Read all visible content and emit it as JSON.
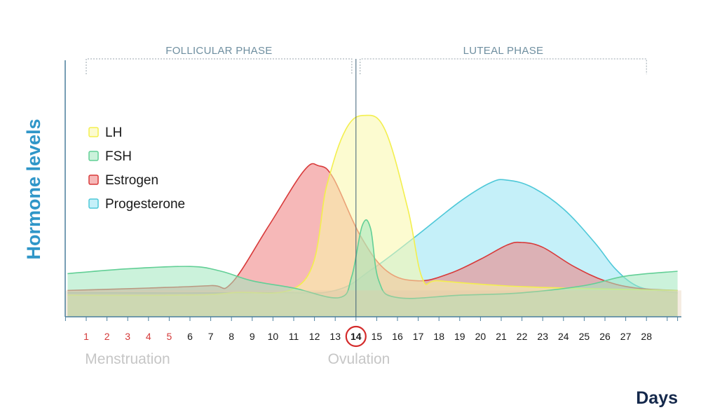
{
  "chart_data": {
    "type": "area",
    "xlabel": "Days",
    "ylabel": "Hormone levels",
    "x_ticks": [
      "1",
      "2",
      "3",
      "4",
      "5",
      "6",
      "7",
      "8",
      "9",
      "10",
      "11",
      "12",
      "13",
      "14",
      "15",
      "16",
      "17",
      "18",
      "19",
      "20",
      "21",
      "22",
      "23",
      "24",
      "25",
      "26",
      "27",
      "28"
    ],
    "menstruation_days": [
      "1",
      "2",
      "3",
      "4",
      "5"
    ],
    "highlighted_day": "14",
    "phases": [
      {
        "label": "FOLLICULAR PHASE",
        "start_day": 1,
        "end_day": 13.8
      },
      {
        "label": "LUTEAL PHASE",
        "start_day": 14.2,
        "end_day": 28
      }
    ],
    "ovulation_day": 14,
    "annotations": {
      "menstruation": "Menstruation",
      "ovulation": "Ovulation"
    },
    "xlim": [
      0.1,
      29.5
    ],
    "ylim": [
      0,
      1
    ],
    "grid": false,
    "legend_position": "left",
    "series": [
      {
        "name": "LH",
        "color": "#f3ef4e",
        "fill": "rgba(250,248,170,0.55)",
        "points": [
          [
            0.1,
            0.09
          ],
          [
            5,
            0.09
          ],
          [
            8,
            0.1
          ],
          [
            11.5,
            0.15
          ],
          [
            12.6,
            0.55
          ],
          [
            13.5,
            0.78
          ],
          [
            14.4,
            0.84
          ],
          [
            15.4,
            0.78
          ],
          [
            16.5,
            0.45
          ],
          [
            17.2,
            0.16
          ],
          [
            18,
            0.15
          ],
          [
            21,
            0.13
          ],
          [
            24,
            0.12
          ],
          [
            29.5,
            0.11
          ]
        ]
      },
      {
        "name": "FSH",
        "color": "#62cf96",
        "fill": "rgba(160,232,190,0.55)",
        "points": [
          [
            0.1,
            0.18
          ],
          [
            3,
            0.2
          ],
          [
            6,
            0.21
          ],
          [
            7.5,
            0.19
          ],
          [
            9,
            0.15
          ],
          [
            11,
            0.12
          ],
          [
            13.2,
            0.08
          ],
          [
            13.8,
            0.17
          ],
          [
            14.3,
            0.38
          ],
          [
            14.7,
            0.37
          ],
          [
            15.1,
            0.15
          ],
          [
            16,
            0.08
          ],
          [
            19,
            0.09
          ],
          [
            22,
            0.1
          ],
          [
            25,
            0.13
          ],
          [
            27,
            0.17
          ],
          [
            29.5,
            0.19
          ]
        ]
      },
      {
        "name": "Estrogen",
        "color": "#d83a3a",
        "fill": "rgba(238,126,126,0.55)",
        "points": [
          [
            0.1,
            0.11
          ],
          [
            4,
            0.12
          ],
          [
            7,
            0.13
          ],
          [
            8,
            0.14
          ],
          [
            9.8,
            0.38
          ],
          [
            11.5,
            0.61
          ],
          [
            12.2,
            0.63
          ],
          [
            12.9,
            0.58
          ],
          [
            14.2,
            0.34
          ],
          [
            15.5,
            0.19
          ],
          [
            17,
            0.15
          ],
          [
            18.5,
            0.18
          ],
          [
            20,
            0.24
          ],
          [
            21.3,
            0.3
          ],
          [
            22,
            0.31
          ],
          [
            23,
            0.29
          ],
          [
            24.5,
            0.21
          ],
          [
            26,
            0.15
          ],
          [
            27.5,
            0.12
          ],
          [
            29.5,
            0.11
          ]
        ]
      },
      {
        "name": "Progesterone",
        "color": "#4ec8d8",
        "fill": "rgba(150,228,244,0.55)",
        "points": [
          [
            0.1,
            0.1
          ],
          [
            10,
            0.1
          ],
          [
            13,
            0.11
          ],
          [
            14.8,
            0.2
          ],
          [
            16.8,
            0.33
          ],
          [
            19,
            0.48
          ],
          [
            20.5,
            0.56
          ],
          [
            21.3,
            0.57
          ],
          [
            22.5,
            0.54
          ],
          [
            24,
            0.45
          ],
          [
            25.5,
            0.31
          ],
          [
            26.5,
            0.2
          ],
          [
            27.5,
            0.13
          ],
          [
            28.5,
            0.11
          ],
          [
            29.5,
            0.1
          ]
        ]
      }
    ]
  }
}
